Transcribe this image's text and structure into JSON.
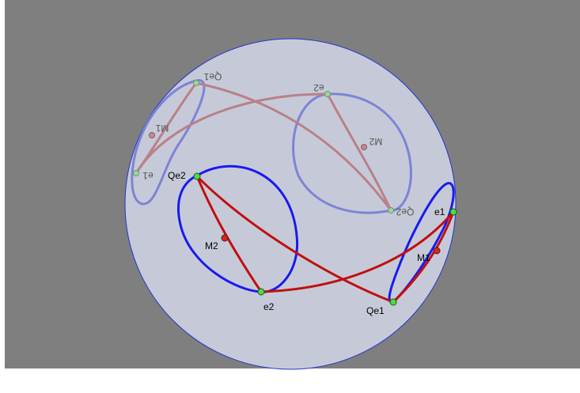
{
  "colors": {
    "background": "#7f7f7f",
    "disk_fill": "#c6cad8",
    "disk_stroke": "#2233cc",
    "curve_blue": "#1a1aee",
    "curve_red": "#c01010",
    "ghost_blue": "#7d83d6",
    "ghost_red": "#b98088",
    "point_green": "#4ddb4d",
    "point_red": "#d22a1a",
    "label_text": "#000000",
    "ghost_label_text": "#555555"
  },
  "labels": {
    "qe2": "Qe2",
    "m2": "M2",
    "e2": "e2",
    "e1": "e1",
    "m1": "M1",
    "qe1": "Qe1"
  },
  "ghost_labels": {
    "qe1": "Qe1",
    "e2": "e2",
    "m1": "M1",
    "m2": "M2",
    "e1": "e1",
    "qe2": "Qe2"
  }
}
